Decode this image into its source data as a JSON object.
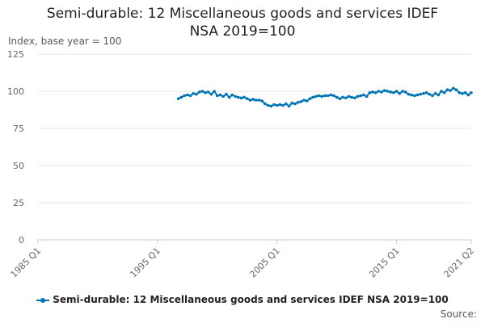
{
  "chart_data": {
    "type": "line",
    "title_lines": [
      "Semi-durable: 12 Miscellaneous goods and services IDEF",
      "NSA 2019=100"
    ],
    "ylabel": "Index, base year = 100",
    "ylim": [
      0,
      125
    ],
    "yticks": [
      "0",
      "25",
      "50",
      "75",
      "100",
      "125"
    ],
    "xlim": [
      "1985 Q1",
      "2021 Q2"
    ],
    "xticks": [
      "1985 Q1",
      "1995 Q1",
      "2005 Q1",
      "2015 Q1",
      "2021 Q2"
    ],
    "grid": true,
    "legend": "bottom-center",
    "source": "Source:",
    "colors": {
      "series": "#0075b4",
      "grid": "#e6e6e6",
      "axis": "#cccccc"
    },
    "series": [
      {
        "name": "Semi-durable: 12 Miscellaneous goods and services IDEF NSA 2019=100",
        "x": [
          "1996 Q4",
          "1997 Q1",
          "1997 Q2",
          "1997 Q3",
          "1997 Q4",
          "1998 Q1",
          "1998 Q2",
          "1998 Q3",
          "1998 Q4",
          "1999 Q1",
          "1999 Q2",
          "1999 Q3",
          "1999 Q4",
          "2000 Q1",
          "2000 Q2",
          "2000 Q3",
          "2000 Q4",
          "2001 Q1",
          "2001 Q2",
          "2001 Q3",
          "2001 Q4",
          "2002 Q1",
          "2002 Q2",
          "2002 Q3",
          "2002 Q4",
          "2003 Q1",
          "2003 Q2",
          "2003 Q3",
          "2003 Q4",
          "2004 Q1",
          "2004 Q2",
          "2004 Q3",
          "2004 Q4",
          "2005 Q1",
          "2005 Q2",
          "2005 Q3",
          "2005 Q4",
          "2006 Q1",
          "2006 Q2",
          "2006 Q3",
          "2006 Q4",
          "2007 Q1",
          "2007 Q2",
          "2007 Q3",
          "2007 Q4",
          "2008 Q1",
          "2008 Q2",
          "2008 Q3",
          "2008 Q4",
          "2009 Q1",
          "2009 Q2",
          "2009 Q3",
          "2009 Q4",
          "2010 Q1",
          "2010 Q2",
          "2010 Q3",
          "2010 Q4",
          "2011 Q1",
          "2011 Q2",
          "2011 Q3",
          "2011 Q4",
          "2012 Q1",
          "2012 Q2",
          "2012 Q3",
          "2012 Q4",
          "2013 Q1",
          "2013 Q2",
          "2013 Q3",
          "2013 Q4",
          "2014 Q1",
          "2014 Q2",
          "2014 Q3",
          "2014 Q4",
          "2015 Q1",
          "2015 Q2",
          "2015 Q3",
          "2015 Q4",
          "2016 Q1",
          "2016 Q2",
          "2016 Q3",
          "2016 Q4",
          "2017 Q1",
          "2017 Q2",
          "2017 Q3",
          "2017 Q4",
          "2018 Q1",
          "2018 Q2",
          "2018 Q3",
          "2018 Q4",
          "2019 Q1",
          "2019 Q2",
          "2019 Q3",
          "2019 Q4",
          "2020 Q1",
          "2020 Q2",
          "2020 Q3",
          "2020 Q4",
          "2021 Q1",
          "2021 Q2"
        ],
        "values": [
          95,
          96,
          97,
          97.5,
          97,
          98.5,
          98,
          99.5,
          100,
          99,
          99.5,
          98,
          100,
          97,
          97.5,
          96.5,
          98,
          96,
          97.5,
          96.5,
          96,
          95.5,
          96,
          95,
          94,
          94.5,
          94,
          94,
          93.5,
          91.5,
          90.5,
          90,
          91,
          90.5,
          91,
          90.5,
          91.5,
          90,
          92,
          91.5,
          92.5,
          93,
          94,
          93.5,
          95,
          96,
          96.5,
          97,
          96.5,
          97,
          97,
          97.5,
          97,
          96,
          95,
          96,
          95.5,
          96.5,
          96,
          95.5,
          96.5,
          97,
          97.5,
          96.5,
          99,
          99.5,
          99,
          100,
          99.5,
          100.5,
          100,
          99.5,
          99,
          100,
          98.5,
          100,
          99.5,
          98,
          97.5,
          97,
          97.5,
          98,
          98.5,
          99,
          98,
          97,
          98.5,
          97.5,
          100,
          99,
          101,
          100.5,
          102,
          101,
          99,
          98.5,
          99,
          97.5,
          99
        ]
      }
    ]
  }
}
